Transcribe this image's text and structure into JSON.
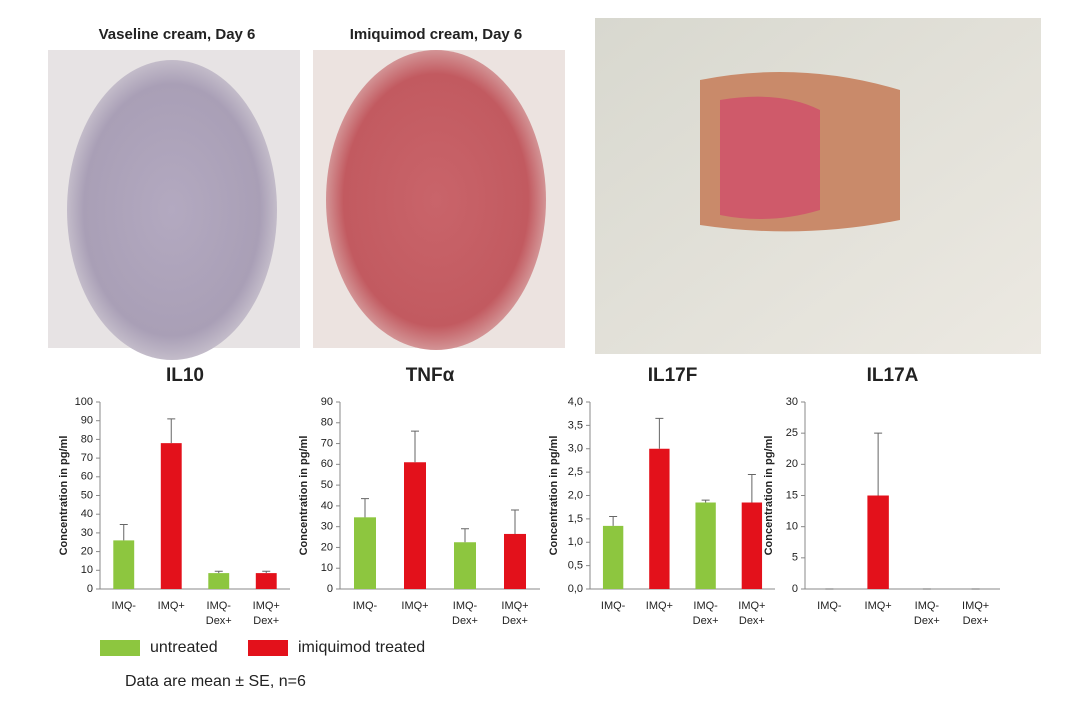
{
  "photos": [
    {
      "caption": "Vaseline cream, Day 6"
    },
    {
      "caption": "Imiquimod cream, Day 6"
    }
  ],
  "chart_data": [
    {
      "type": "bar",
      "title": "IL10",
      "ylabel": "Concentration in pg/ml",
      "categories": [
        "IMQ-",
        "IMQ+",
        "IMQ- Dex+",
        "IMQ+ Dex+"
      ],
      "values": [
        26,
        78,
        8.5,
        8.5
      ],
      "errors": [
        8.5,
        13,
        1,
        1
      ],
      "colors": [
        "#8dc63f",
        "#e3111b",
        "#8dc63f",
        "#e3111b"
      ],
      "ylim": [
        0,
        100
      ],
      "yticks": [
        0,
        10,
        20,
        30,
        40,
        50,
        60,
        70,
        80,
        90,
        100
      ]
    },
    {
      "type": "bar",
      "title": "TNFα",
      "ylabel": "Concentration in pg/ml",
      "categories": [
        "IMQ-",
        "IMQ+",
        "IMQ- Dex+",
        "IMQ+ Dex+"
      ],
      "values": [
        34.5,
        61,
        22.5,
        26.5
      ],
      "errors": [
        9,
        15,
        6.5,
        11.5
      ],
      "colors": [
        "#8dc63f",
        "#e3111b",
        "#8dc63f",
        "#e3111b"
      ],
      "ylim": [
        0,
        90
      ],
      "yticks": [
        0,
        10,
        20,
        30,
        40,
        50,
        60,
        70,
        80,
        90
      ]
    },
    {
      "type": "bar",
      "title": "IL17F",
      "ylabel": "Concentration in pg/ml",
      "categories": [
        "IMQ-",
        "IMQ+",
        "IMQ- Dex+",
        "IMQ+ Dex+"
      ],
      "values": [
        1.35,
        3.0,
        1.85,
        1.85
      ],
      "errors": [
        0.2,
        0.65,
        0.05,
        0.6
      ],
      "colors": [
        "#8dc63f",
        "#e3111b",
        "#8dc63f",
        "#e3111b"
      ],
      "ylim": [
        0,
        4
      ],
      "yticks": [
        {
          "value": 0,
          "label": "0,0"
        },
        {
          "value": 0.5,
          "label": "0,5"
        },
        {
          "value": 1,
          "label": "1,0"
        },
        {
          "value": 1.5,
          "label": "1,5"
        },
        {
          "value": 2,
          "label": "2,0"
        },
        {
          "value": 2.5,
          "label": "2,5"
        },
        {
          "value": 3,
          "label": "3,0"
        },
        {
          "value": 3.5,
          "label": "3,5"
        },
        {
          "value": 4,
          "label": "4,0"
        }
      ]
    },
    {
      "type": "bar",
      "title": "IL17A",
      "ylabel": "Concentration in pg/ml",
      "categories": [
        "IMQ-",
        "IMQ+",
        "IMQ- Dex+",
        "IMQ+ Dex+"
      ],
      "values": [
        0,
        15,
        0,
        0
      ],
      "errors": [
        0,
        10,
        0,
        0
      ],
      "colors": [
        "#8dc63f",
        "#e3111b",
        "#8dc63f",
        "#e3111b"
      ],
      "ylim": [
        0,
        30
      ],
      "yticks": [
        0,
        5,
        10,
        15,
        20,
        25,
        30
      ]
    }
  ],
  "legend": {
    "items": [
      {
        "name": "untreated",
        "color": "#8dc63f"
      },
      {
        "name": "imiquimod treated",
        "color": "#e3111b"
      }
    ]
  },
  "note": "Data are mean ± SE, n=6"
}
